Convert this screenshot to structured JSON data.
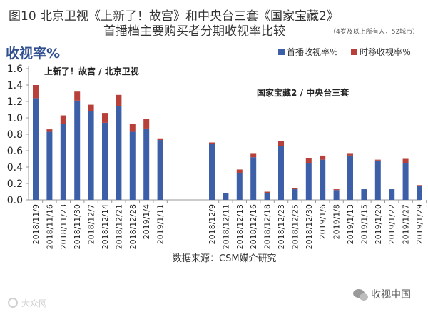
{
  "figure": {
    "title_line1": "图10 北京卫视《上新了！故宫》和中央台三套《国家宝藏2》",
    "title_line2": "首播档主要购买者分期收视率比较",
    "title_note": "（4岁及以上所有人，52城市）",
    "source": "数据来源：CSM媒介研究",
    "watermark_left": "大众网",
    "watermark_right": "收视中国"
  },
  "colors": {
    "first_run": "#3d5fa8",
    "timeshift": "#b8403a",
    "axis": "#999999"
  },
  "chart_data": {
    "type": "bar",
    "stacked": true,
    "title": "",
    "ylabel": "收视率%",
    "ylim": [
      0,
      1.6
    ],
    "yticks": [
      "0.0",
      "0.2",
      "0.4",
      "0.6",
      "0.8",
      "1.0",
      "1.2",
      "1.4",
      "1.6"
    ],
    "grid": false,
    "legend_position": "top-right",
    "series": [
      {
        "name": "首播收视率％",
        "color": "#3d5fa8"
      },
      {
        "name": "时移收视率％",
        "color": "#b8403a"
      }
    ],
    "groups": [
      {
        "label": "上新了！故宫 / 北京卫视",
        "categories": [
          "2018/11/9",
          "2018/11/16",
          "2018/11/23",
          "2018/11/30",
          "2018/12/7",
          "2018/12/14",
          "2018/12/21",
          "2018/12/28",
          "2019/1/4",
          "2019/1/11"
        ],
        "first_run": [
          1.24,
          0.83,
          0.93,
          1.21,
          1.08,
          0.94,
          1.14,
          0.83,
          0.87,
          0.73
        ],
        "timeshift": [
          0.16,
          0.03,
          0.1,
          0.11,
          0.08,
          0.12,
          0.14,
          0.1,
          0.12,
          0.02
        ]
      },
      {
        "label": "国家宝藏2 / 中央台三套",
        "categories": [
          "2018/12/9",
          "2018/12/11",
          "2018/12/13",
          "2018/12/16",
          "2018/12/18",
          "2018/12/23",
          "2018/12/25",
          "2018/12/30",
          "2019/1/6",
          "2019/1/8",
          "2019/1/13",
          "2019/1/15",
          "2019/1/20",
          "2019/1/22",
          "2019/1/27",
          "2019/1/29"
        ],
        "first_run": [
          0.68,
          0.08,
          0.33,
          0.52,
          0.08,
          0.66,
          0.13,
          0.45,
          0.49,
          0.12,
          0.54,
          0.13,
          0.48,
          0.13,
          0.45,
          0.17
        ],
        "timeshift": [
          0.02,
          0.0,
          0.04,
          0.05,
          0.02,
          0.06,
          0.01,
          0.06,
          0.05,
          0.01,
          0.03,
          0.0,
          0.01,
          0.0,
          0.05,
          0.01
        ]
      }
    ]
  }
}
